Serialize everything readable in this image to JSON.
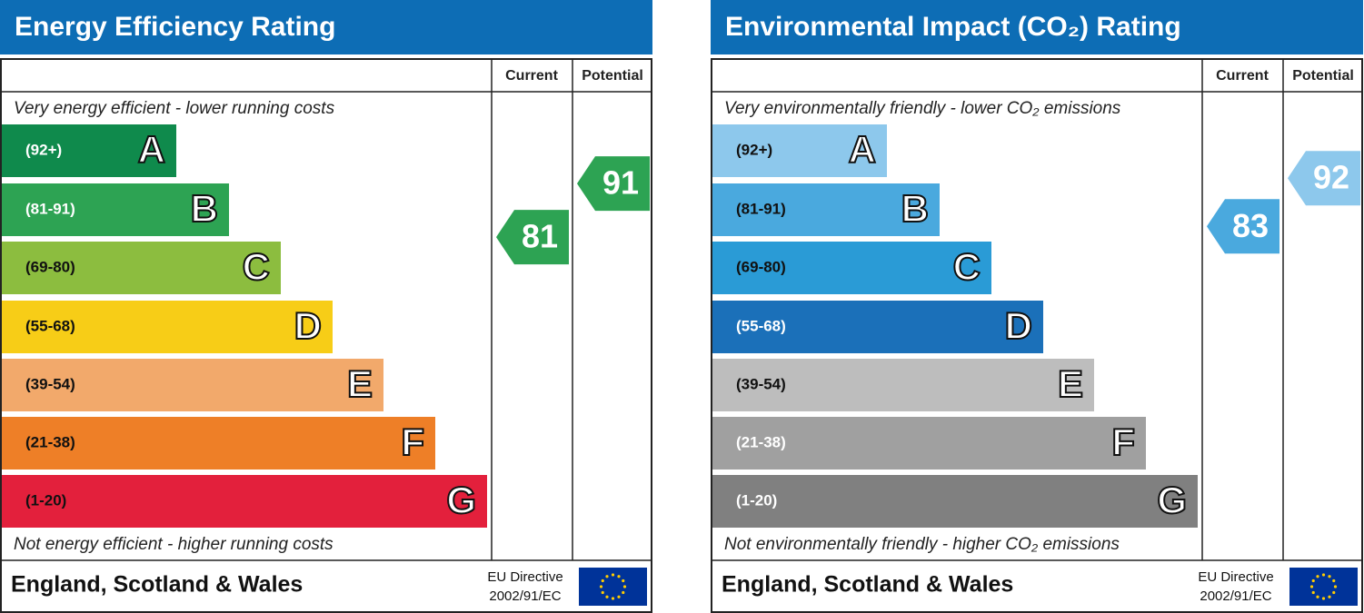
{
  "panels": [
    {
      "title": "Energy Efficiency Rating",
      "columns": [
        "Current",
        "Potential"
      ],
      "top_note": "Very energy efficient - lower running costs",
      "bottom_note": "Not energy efficient - higher running costs",
      "bands": [
        {
          "range": "(92+)",
          "letter": "A",
          "color": "#0f8a4c",
          "label_color": "#ffffff"
        },
        {
          "range": "(81-91)",
          "letter": "B",
          "color": "#2da353",
          "label_color": "#ffffff"
        },
        {
          "range": "(69-80)",
          "letter": "C",
          "color": "#8cbd3f",
          "label_color": "#111111"
        },
        {
          "range": "(55-68)",
          "letter": "D",
          "color": "#f7cd17",
          "label_color": "#111111"
        },
        {
          "range": "(39-54)",
          "letter": "E",
          "color": "#f2a96b",
          "label_color": "#111111"
        },
        {
          "range": "(21-38)",
          "letter": "F",
          "color": "#ee7f27",
          "label_color": "#111111"
        },
        {
          "range": "(1-20)",
          "letter": "G",
          "color": "#e3203c",
          "label_color": "#111111"
        }
      ],
      "current": {
        "value": 81,
        "color": "#2da353"
      },
      "potential": {
        "value": 91,
        "color": "#2da353"
      },
      "footer": {
        "region": "England, Scotland & Wales",
        "directive": [
          "EU Directive",
          "2002/91/EC"
        ]
      }
    },
    {
      "title": "Environmental Impact (CO₂) Rating",
      "columns": [
        "Current",
        "Potential"
      ],
      "top_note": "Very environmentally friendly - lower CO₂ emissions",
      "bottom_note": "Not environmentally friendly - higher CO₂ emissions",
      "bands": [
        {
          "range": "(92+)",
          "letter": "A",
          "color": "#8dc8ec",
          "label_color": "#111111"
        },
        {
          "range": "(81-91)",
          "letter": "B",
          "color": "#4aa9de",
          "label_color": "#111111"
        },
        {
          "range": "(69-80)",
          "letter": "C",
          "color": "#2a9bd6",
          "label_color": "#111111"
        },
        {
          "range": "(55-68)",
          "letter": "D",
          "color": "#1b70b9",
          "label_color": "#ffffff"
        },
        {
          "range": "(39-54)",
          "letter": "E",
          "color": "#bdbdbd",
          "label_color": "#111111"
        },
        {
          "range": "(21-38)",
          "letter": "F",
          "color": "#a0a0a0",
          "label_color": "#ffffff"
        },
        {
          "range": "(1-20)",
          "letter": "G",
          "color": "#808080",
          "label_color": "#ffffff"
        }
      ],
      "current": {
        "value": 83,
        "color": "#4aa9de"
      },
      "potential": {
        "value": 92,
        "color": "#8dc8ec"
      },
      "footer": {
        "region": "England, Scotland & Wales",
        "directive": [
          "EU Directive",
          "2002/91/EC"
        ]
      }
    }
  ]
}
